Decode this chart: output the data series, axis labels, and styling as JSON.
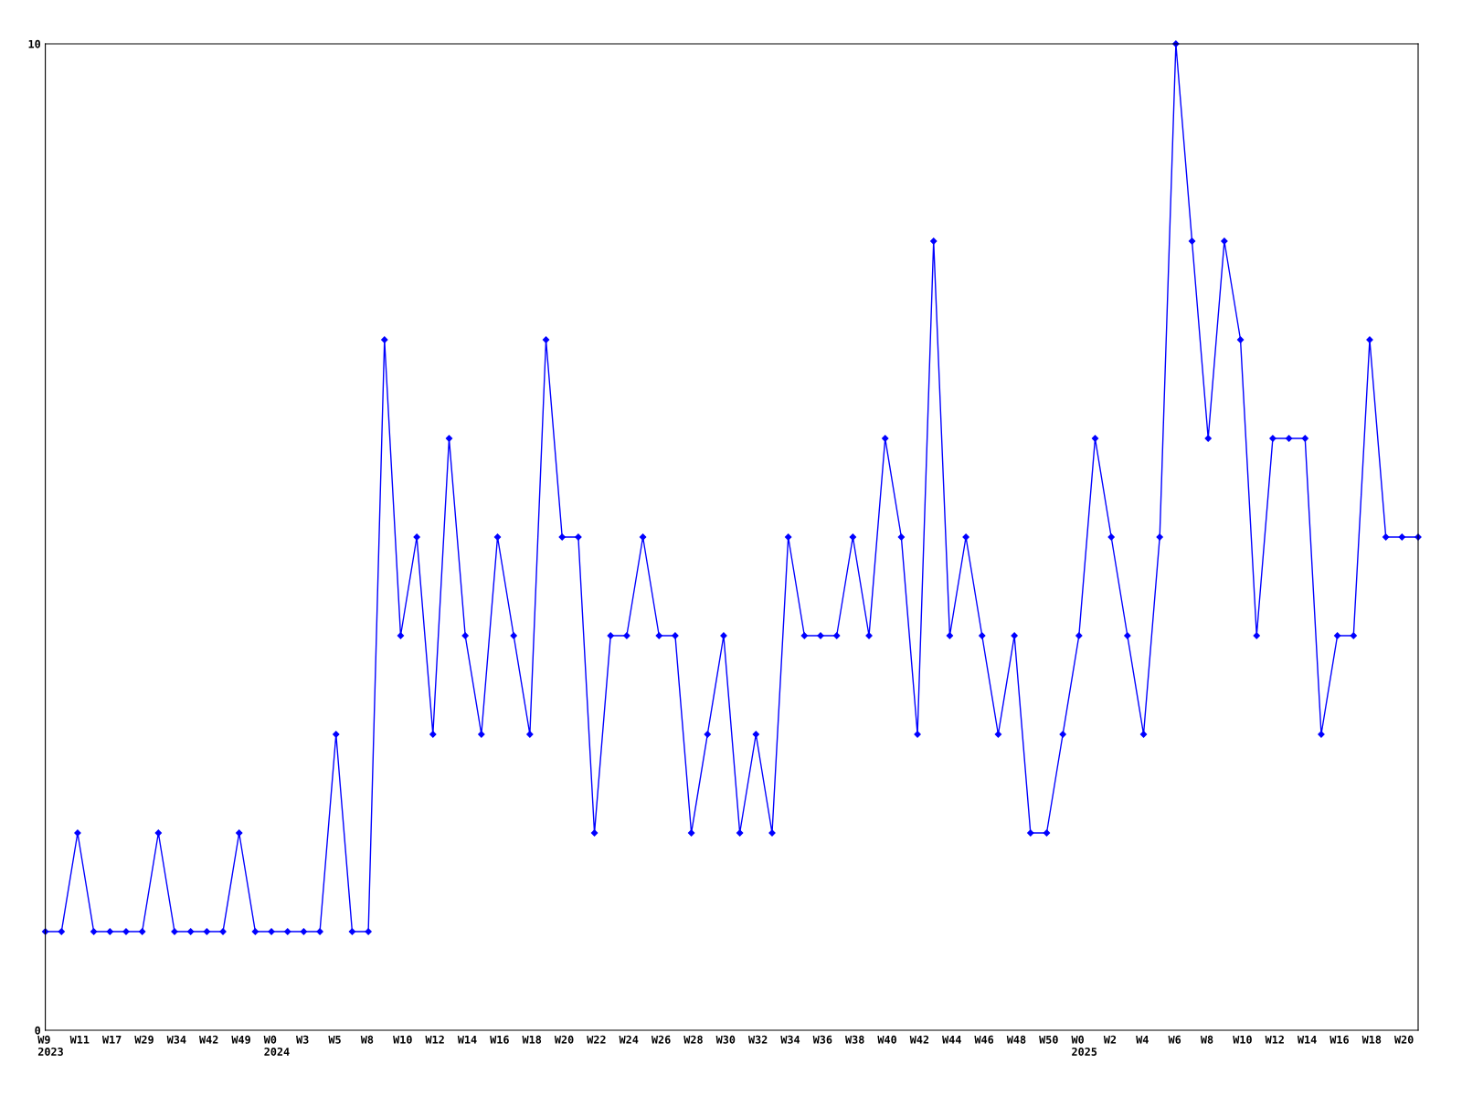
{
  "chart_data": {
    "type": "line",
    "categories": [
      "W9\n2023",
      null,
      "W11",
      null,
      "W17",
      null,
      "W29",
      null,
      "W34",
      null,
      "W42",
      null,
      "W49",
      null,
      "W0\n2024",
      null,
      "W3",
      null,
      "W5",
      null,
      "W8",
      null,
      "W10",
      null,
      "W12",
      null,
      "W14",
      null,
      "W16",
      null,
      "W18",
      null,
      "W20",
      null,
      "W22",
      null,
      "W24",
      null,
      "W26",
      null,
      "W28",
      null,
      "W30",
      null,
      "W32",
      null,
      "W34",
      null,
      "W36",
      null,
      "W38",
      null,
      "W40",
      null,
      "W42",
      null,
      "W44",
      null,
      "W46",
      null,
      "W48",
      null,
      "W50",
      null,
      "W0\n2025",
      null,
      "W2",
      null,
      "W4",
      null,
      "W6",
      null,
      "W8",
      null,
      "W10",
      null,
      "W12",
      null,
      "W14",
      null,
      "W16",
      null,
      "W18",
      null,
      "W20",
      null
    ],
    "series": [
      {
        "color": "#0000ff",
        "values": [
          1,
          1,
          2,
          1,
          1,
          1,
          1,
          2,
          1,
          1,
          1,
          1,
          2,
          1,
          1,
          1,
          1,
          1,
          3,
          1,
          1,
          7,
          4,
          5,
          3,
          6,
          4,
          3,
          5,
          4,
          3,
          7,
          5,
          5,
          2,
          4,
          4,
          5,
          4,
          4,
          2,
          3,
          4,
          2,
          3,
          2,
          5,
          4,
          4,
          4,
          5,
          4,
          6,
          5,
          3,
          8,
          4,
          5,
          4,
          3,
          4,
          2,
          2,
          3,
          4,
          6,
          5,
          4,
          3,
          5,
          10,
          8,
          6,
          8,
          7,
          4,
          6,
          6,
          6,
          3,
          4,
          4,
          7,
          5,
          5,
          5
        ]
      }
    ],
    "ylim": [
      0,
      10
    ],
    "yticks": [
      0,
      10
    ],
    "grid": false,
    "legend": false,
    "marker": "diamond",
    "line_style": "solid"
  }
}
